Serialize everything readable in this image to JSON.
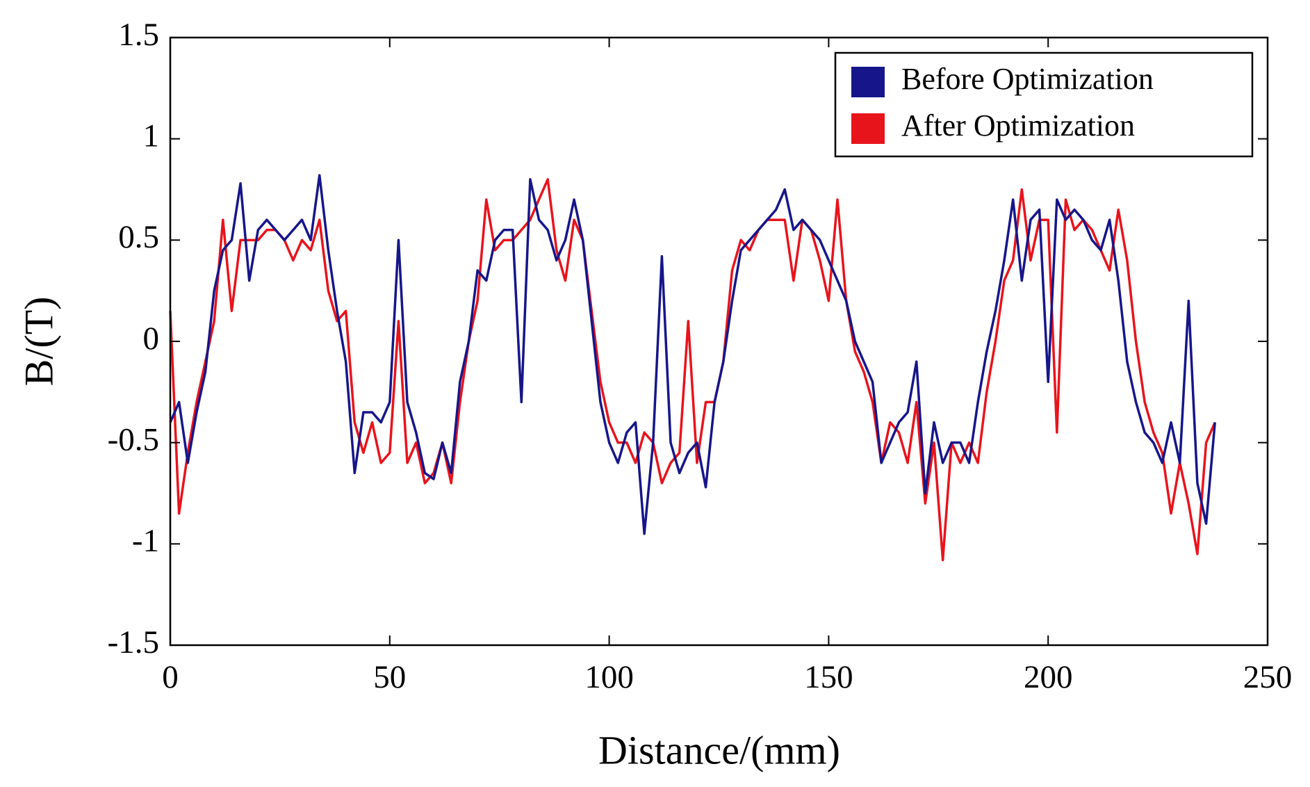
{
  "chart_data": {
    "type": "line",
    "x_label": "Distance/(mm)",
    "y_label": "B/(T)",
    "xlim": [
      0,
      250
    ],
    "xticks": [
      0,
      50,
      100,
      150,
      200,
      250
    ],
    "ylim": [
      -1.5,
      1.5
    ],
    "yticks": [
      -1.5,
      -1,
      -0.5,
      0,
      0.5,
      1,
      1.5
    ],
    "legend": "upper right",
    "x": [
      0,
      2,
      4,
      6,
      8,
      10,
      12,
      14,
      16,
      18,
      20,
      22,
      24,
      26,
      28,
      30,
      32,
      34,
      36,
      38,
      40,
      42,
      44,
      46,
      48,
      50,
      52,
      54,
      56,
      58,
      60,
      62,
      64,
      66,
      68,
      70,
      72,
      74,
      76,
      78,
      80,
      82,
      84,
      86,
      88,
      90,
      92,
      94,
      96,
      98,
      100,
      102,
      104,
      106,
      108,
      110,
      112,
      114,
      116,
      118,
      120,
      122,
      124,
      126,
      128,
      130,
      132,
      134,
      136,
      138,
      140,
      142,
      144,
      146,
      148,
      150,
      152,
      154,
      156,
      158,
      160,
      162,
      164,
      166,
      168,
      170,
      172,
      174,
      176,
      178,
      180,
      182,
      184,
      186,
      188,
      190,
      192,
      194,
      196,
      198,
      200,
      202,
      204,
      206,
      208,
      210,
      212,
      214,
      216,
      218,
      220,
      222,
      224,
      226,
      228,
      230,
      232,
      234,
      236,
      238
    ],
    "series": [
      {
        "name": "Before Optimization",
        "color": "#16168a",
        "values": [
          -0.4,
          -0.3,
          -0.6,
          -0.35,
          -0.15,
          0.25,
          0.45,
          0.5,
          0.78,
          0.3,
          0.55,
          0.6,
          0.55,
          0.5,
          0.55,
          0.6,
          0.5,
          0.82,
          0.45,
          0.15,
          -0.1,
          -0.65,
          -0.35,
          -0.35,
          -0.4,
          -0.3,
          0.5,
          -0.3,
          -0.45,
          -0.65,
          -0.68,
          -0.5,
          -0.65,
          -0.2,
          0,
          0.35,
          0.3,
          0.5,
          0.55,
          0.55,
          -0.3,
          0.8,
          0.6,
          0.55,
          0.4,
          0.5,
          0.7,
          0.5,
          0.1,
          -0.3,
          -0.5,
          -0.6,
          -0.45,
          -0.4,
          -0.95,
          -0.5,
          0.42,
          -0.5,
          -0.65,
          -0.55,
          -0.5,
          -0.72,
          -0.3,
          -0.1,
          0.2,
          0.45,
          0.5,
          0.55,
          0.6,
          0.65,
          0.75,
          0.55,
          0.6,
          0.55,
          0.5,
          0.4,
          0.3,
          0.2,
          0,
          -0.1,
          -0.2,
          -0.6,
          -0.5,
          -0.4,
          -0.35,
          -0.1,
          -0.75,
          -0.4,
          -0.6,
          -0.5,
          -0.5,
          -0.6,
          -0.3,
          -0.05,
          0.15,
          0.4,
          0.7,
          0.3,
          0.6,
          0.65,
          -0.2,
          0.7,
          0.6,
          0.65,
          0.6,
          0.5,
          0.45,
          0.6,
          0.3,
          -0.1,
          -0.3,
          -0.45,
          -0.5,
          -0.6,
          -0.4,
          -0.6,
          0.2,
          -0.7,
          -0.9,
          -0.4
        ]
      },
      {
        "name": "After Optimization",
        "color": "#e8141c",
        "values": [
          0.15,
          -0.85,
          -0.55,
          -0.3,
          -0.1,
          0.1,
          0.6,
          0.15,
          0.5,
          0.5,
          0.5,
          0.55,
          0.55,
          0.5,
          0.4,
          0.5,
          0.45,
          0.6,
          0.25,
          0.1,
          0.15,
          -0.4,
          -0.55,
          -0.4,
          -0.6,
          -0.55,
          0.1,
          -0.6,
          -0.5,
          -0.7,
          -0.65,
          -0.5,
          -0.7,
          -0.3,
          0,
          0.2,
          0.7,
          0.45,
          0.5,
          0.5,
          0.55,
          0.6,
          0.7,
          0.8,
          0.45,
          0.3,
          0.6,
          0.5,
          0.15,
          -0.2,
          -0.4,
          -0.5,
          -0.5,
          -0.6,
          -0.45,
          -0.5,
          -0.7,
          -0.6,
          -0.55,
          0.1,
          -0.6,
          -0.3,
          -0.3,
          -0.1,
          0.35,
          0.5,
          0.45,
          0.55,
          0.6,
          0.6,
          0.6,
          0.3,
          0.6,
          0.55,
          0.4,
          0.2,
          0.7,
          0.2,
          -0.05,
          -0.15,
          -0.3,
          -0.6,
          -0.4,
          -0.45,
          -0.6,
          -0.3,
          -0.8,
          -0.5,
          -1.08,
          -0.5,
          -0.6,
          -0.5,
          -0.6,
          -0.25,
          0,
          0.3,
          0.4,
          0.75,
          0.4,
          0.6,
          0.6,
          -0.45,
          0.7,
          0.55,
          0.6,
          0.55,
          0.45,
          0.35,
          0.65,
          0.4,
          0,
          -0.3,
          -0.45,
          -0.55,
          -0.85,
          -0.6,
          -0.8,
          -1.05,
          -0.5,
          -0.4
        ]
      }
    ]
  }
}
